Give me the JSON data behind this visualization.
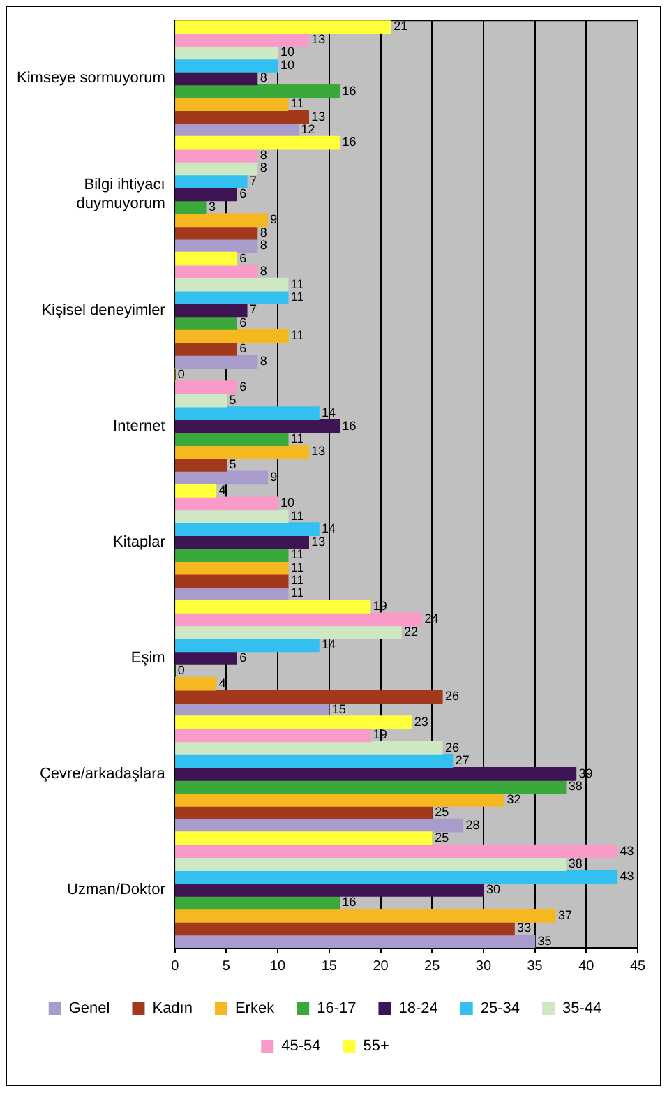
{
  "chart_data": {
    "type": "bar",
    "orientation": "horizontal",
    "categories": [
      "Kimseye sormuyorum",
      "Bilgi ihtiyacı duymuyorum",
      "Kişisel deneyimler",
      "Internet",
      "Kitaplar",
      "Eşim",
      "Çevre/arkadaşlara",
      "Uzman/Doktor"
    ],
    "series": [
      {
        "name": "Genel",
        "color": "#a99ccc",
        "values": [
          12,
          8,
          8,
          9,
          11,
          15,
          28,
          35
        ]
      },
      {
        "name": "Kadın",
        "color": "#a3391c",
        "values": [
          13,
          8,
          6,
          5,
          11,
          26,
          25,
          33
        ]
      },
      {
        "name": "Erkek",
        "color": "#f5b820",
        "values": [
          11,
          9,
          11,
          13,
          11,
          4,
          32,
          37
        ]
      },
      {
        "name": "16-17",
        "color": "#3aa83a",
        "values": [
          16,
          3,
          6,
          11,
          11,
          0,
          38,
          16
        ]
      },
      {
        "name": "18-24",
        "color": "#3f1452",
        "values": [
          8,
          6,
          7,
          16,
          13,
          6,
          39,
          30
        ]
      },
      {
        "name": "25-34",
        "color": "#33c0f0",
        "values": [
          10,
          7,
          11,
          14,
          14,
          14,
          27,
          43
        ]
      },
      {
        "name": "35-44",
        "color": "#cfe8c4",
        "values": [
          10,
          8,
          11,
          5,
          11,
          22,
          26,
          38
        ]
      },
      {
        "name": "45-54",
        "color": "#f99ac8",
        "values": [
          13,
          8,
          8,
          6,
          10,
          24,
          19,
          43
        ]
      },
      {
        "name": "55+",
        "color": "#ffff3a",
        "values": [
          21,
          16,
          6,
          0,
          4,
          19,
          23,
          25
        ]
      }
    ],
    "xlim": [
      0,
      45
    ],
    "xticks": [
      0,
      5,
      10,
      15,
      20,
      25,
      30,
      35,
      40,
      45
    ],
    "grid": "x",
    "legend": "bottom",
    "data_labels": true
  }
}
